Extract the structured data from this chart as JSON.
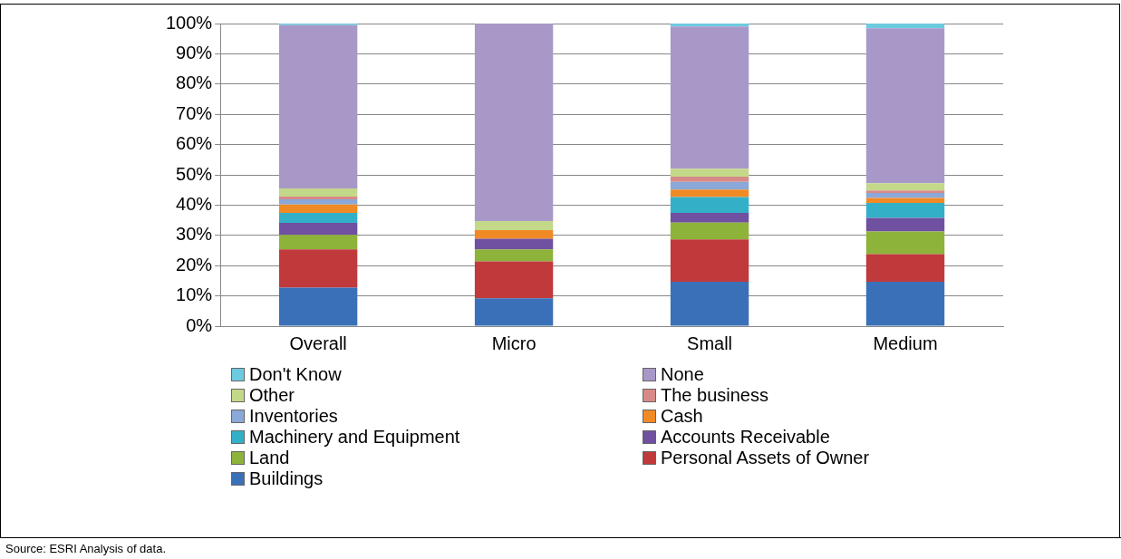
{
  "chart_data": {
    "type": "bar",
    "stacked": true,
    "categories": [
      "Overall",
      "Micro",
      "Small",
      "Medium"
    ],
    "series": [
      {
        "name": "Buildings",
        "color": "#3a70b8",
        "values": [
          12.7,
          9.2,
          14.7,
          14.7
        ]
      },
      {
        "name": "Personal Assets of Owner",
        "color": "#c0393b",
        "values": [
          12.7,
          12.2,
          14.0,
          9.1
        ]
      },
      {
        "name": "Land",
        "color": "#8db33a",
        "values": [
          4.8,
          4.0,
          5.5,
          7.5
        ]
      },
      {
        "name": "Accounts Receivable",
        "color": "#7050a0",
        "values": [
          3.9,
          3.5,
          3.2,
          4.5
        ]
      },
      {
        "name": "Machinery and Equipment",
        "color": "#33b0c8",
        "values": [
          3.3,
          0,
          5.3,
          4.9
        ]
      },
      {
        "name": "Cash",
        "color": "#f08a24",
        "values": [
          2.8,
          2.8,
          2.4,
          1.7
        ]
      },
      {
        "name": "Inventories",
        "color": "#8aa8d8",
        "values": [
          1.7,
          0,
          2.6,
          1.6
        ]
      },
      {
        "name": "The business",
        "color": "#d88a88",
        "values": [
          0.9,
          0,
          1.7,
          0.8
        ]
      },
      {
        "name": "Other",
        "color": "#c4d88a",
        "values": [
          2.7,
          3.0,
          2.6,
          2.4
        ]
      },
      {
        "name": "None",
        "color": "#a898c8",
        "values": [
          54.0,
          65.3,
          47.0,
          51.2
        ]
      },
      {
        "name": "Don't Know",
        "color": "#6ccade",
        "values": [
          0.5,
          0,
          1.0,
          1.6
        ]
      }
    ],
    "ylim": [
      0,
      100
    ],
    "yticks": [
      {
        "value": 0,
        "label": "0%"
      },
      {
        "value": 10,
        "label": "10%"
      },
      {
        "value": 20,
        "label": "20%"
      },
      {
        "value": 30,
        "label": "30%"
      },
      {
        "value": 40,
        "label": "40%"
      },
      {
        "value": 50,
        "label": "50%"
      },
      {
        "value": 60,
        "label": "60%"
      },
      {
        "value": 70,
        "label": "70%"
      },
      {
        "value": 80,
        "label": "80%"
      },
      {
        "value": 90,
        "label": "90%"
      },
      {
        "value": 100,
        "label": "100%"
      }
    ],
    "grid": "y",
    "legend": "bottom",
    "annotations": [
      "Source:  ESRI Analysis of data."
    ]
  }
}
